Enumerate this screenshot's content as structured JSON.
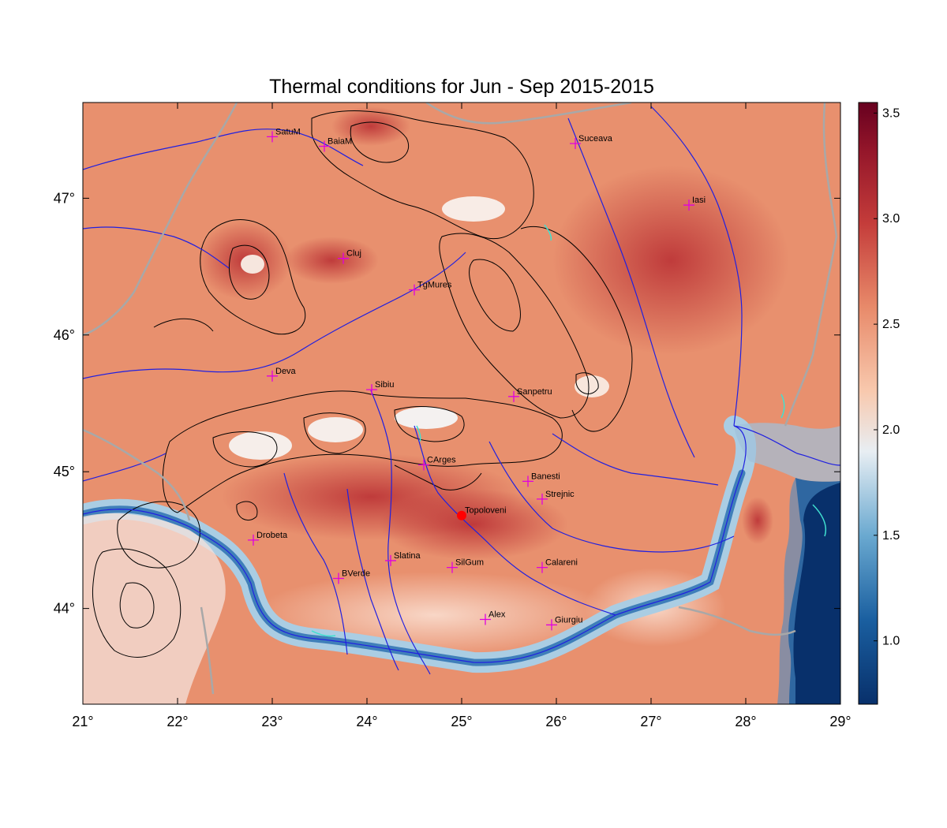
{
  "title": "Thermal conditions for Jun - Sep  2015-2015",
  "map": {
    "lon_range": [
      21,
      29
    ],
    "lat_range": [
      43.3,
      47.7
    ],
    "lon_ticks": [
      "21°",
      "22°",
      "23°",
      "24°",
      "25°",
      "26°",
      "27°",
      "28°",
      "29°"
    ],
    "lat_ticks": [
      "44°",
      "45°",
      "46°",
      "47°"
    ],
    "lat_tick_values": [
      44,
      45,
      46,
      47
    ],
    "lon_tick_values": [
      21,
      22,
      23,
      24,
      25,
      26,
      27,
      28,
      29
    ]
  },
  "colorbar": {
    "range": [
      0.7,
      3.55
    ],
    "ticks": [
      "1.0",
      "1.5",
      "2.0",
      "2.5",
      "3.0",
      "3.5"
    ],
    "tick_values": [
      1.0,
      1.5,
      2.0,
      2.5,
      3.0,
      3.5
    ],
    "colors": [
      "#08306b",
      "#2c7bb6",
      "#9ecae1",
      "#f7f7f7",
      "#f4a582",
      "#d6604d",
      "#b2182b",
      "#67001f"
    ]
  },
  "cities": [
    {
      "name": "SatuM",
      "lon": 23.0,
      "lat": 47.45
    },
    {
      "name": "BaiaM",
      "lon": 23.55,
      "lat": 47.38
    },
    {
      "name": "Suceava",
      "lon": 26.2,
      "lat": 47.4
    },
    {
      "name": "Iasi",
      "lon": 27.4,
      "lat": 46.95
    },
    {
      "name": "Cluj",
      "lon": 23.75,
      "lat": 46.56
    },
    {
      "name": "TgMures",
      "lon": 24.5,
      "lat": 46.33
    },
    {
      "name": "Deva",
      "lon": 23.0,
      "lat": 45.7
    },
    {
      "name": "Sibiu",
      "lon": 24.05,
      "lat": 45.6
    },
    {
      "name": "Sanpetru",
      "lon": 25.55,
      "lat": 45.55
    },
    {
      "name": "CArges",
      "lon": 24.6,
      "lat": 45.05
    },
    {
      "name": "Banesti",
      "lon": 25.7,
      "lat": 44.93
    },
    {
      "name": "Strejnic",
      "lon": 25.85,
      "lat": 44.8
    },
    {
      "name": "Topoloveni",
      "lon": 25.0,
      "lat": 44.68,
      "highlight": true
    },
    {
      "name": "Drobeta",
      "lon": 22.8,
      "lat": 44.5
    },
    {
      "name": "Slatina",
      "lon": 24.25,
      "lat": 44.35
    },
    {
      "name": "SilGum",
      "lon": 24.9,
      "lat": 44.3
    },
    {
      "name": "Calareni",
      "lon": 25.85,
      "lat": 44.3
    },
    {
      "name": "BVerde",
      "lon": 23.7,
      "lat": 44.22
    },
    {
      "name": "Alex",
      "lon": 25.25,
      "lat": 43.92
    },
    {
      "name": "Giurgiu",
      "lon": 25.95,
      "lat": 43.88
    }
  ],
  "city_labels": {
    "SatuM": "SatuM",
    "BaiaM": "BaiaM",
    "Suceava": "Suceava",
    "Iasi": "Iasi",
    "Cluj": "Cluj",
    "TgMures": "TgMures",
    "Deva": "Deva",
    "Sibiu": "Sibiu",
    "Sanpetru": "Sanpetru",
    "CArges": "CArges",
    "Banesti": "Banesti",
    "Strejnic": "Strejnic",
    "Topoloveni": "Topoloveni",
    "Drobeta": "Drobeta",
    "Slatina": "Slatina",
    "SilGum": "SilGum",
    "Calareni": "Calareni",
    "BVerde": "BVerde",
    "Alex": "Alex",
    "Giurgiu": "Giurgiu"
  },
  "colors": {
    "river": "#2020e0",
    "border": "#a8a8a8",
    "contour": "#000000",
    "marker": "#e000e0",
    "highlight": "#ff0000",
    "lake": "#40e0d0"
  }
}
